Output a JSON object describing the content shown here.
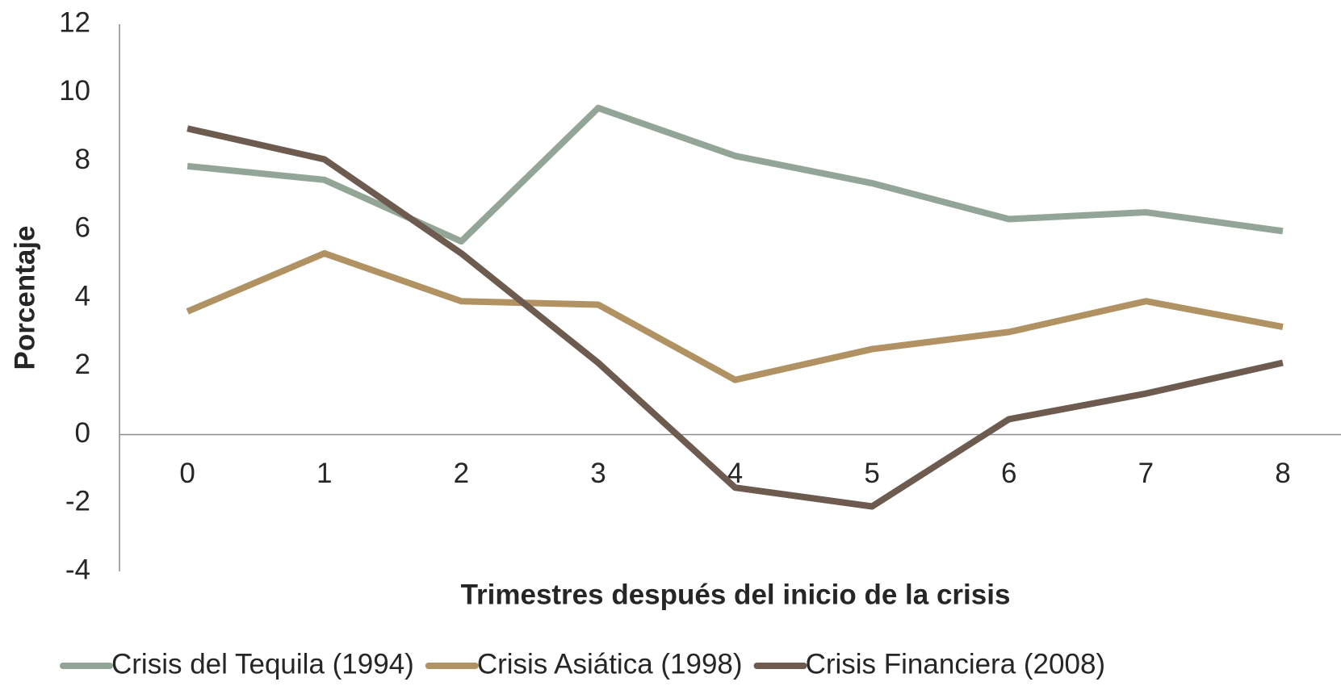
{
  "chart_data": {
    "type": "line",
    "x_label": "Trimestres después del inicio de la crisis",
    "y_label": "Porcentaje",
    "categories": [
      "0",
      "1",
      "2",
      "3",
      "4",
      "5",
      "6",
      "7",
      "8"
    ],
    "series": [
      {
        "name": "Crisis del Tequila (1994)",
        "color": "#93a597",
        "values": [
          7.85,
          7.45,
          5.65,
          9.55,
          8.15,
          7.35,
          6.3,
          6.5,
          5.95
        ]
      },
      {
        "name": "Crisis Asiática (1998)",
        "color": "#b09263",
        "values": [
          3.6,
          5.3,
          3.9,
          3.8,
          1.6,
          2.5,
          3.0,
          3.9,
          3.15
        ]
      },
      {
        "name": "Crisis Financiera (2008)",
        "color": "#6e5b50",
        "values": [
          8.95,
          8.05,
          5.3,
          2.1,
          -1.55,
          -2.1,
          0.45,
          1.2,
          2.1
        ]
      }
    ],
    "ylim": [
      -4,
      12
    ],
    "yticks": [
      -4,
      -2,
      0,
      2,
      4,
      6,
      8,
      10,
      12
    ],
    "grid": false,
    "legend": "bottom"
  }
}
